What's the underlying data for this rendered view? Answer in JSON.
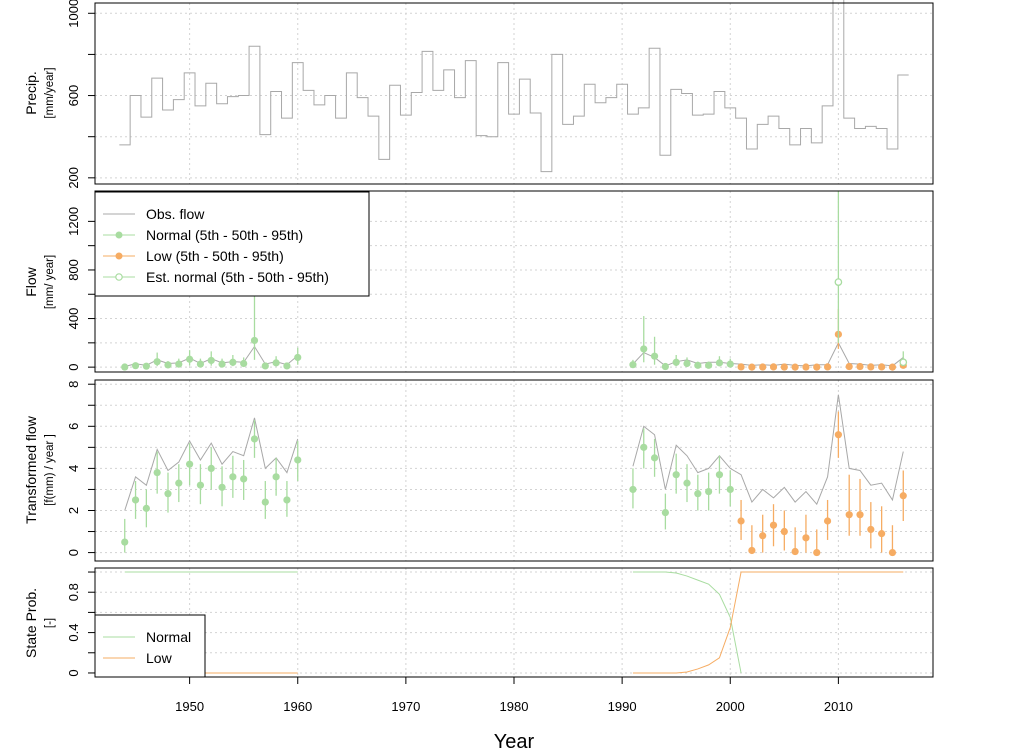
{
  "chart_data": {
    "type": "line",
    "xlabel": "Year",
    "xticks": [
      1950,
      1960,
      1970,
      1980,
      1990,
      2000,
      2010
    ],
    "colors": {
      "obs": "#a8a8a8",
      "normal": "#a8dca0",
      "low": "#f6ac63",
      "grid": "#d3d3d3"
    },
    "panels": [
      {
        "id": "precip",
        "ylabel": "Precip.",
        "yunit": "[mm/year]",
        "ylim": [
          170,
          1050
        ],
        "yticks": [
          200,
          600,
          1000
        ],
        "minor_ticks": [
          400,
          800
        ],
        "series": [
          {
            "name": "precip",
            "x": [
              1944,
              1945,
              1946,
              1947,
              1948,
              1949,
              1950,
              1951,
              1952,
              1953,
              1954,
              1955,
              1956,
              1957,
              1958,
              1959,
              1960,
              1961,
              1962,
              1963,
              1964,
              1965,
              1966,
              1967,
              1968,
              1969,
              1970,
              1971,
              1972,
              1973,
              1974,
              1975,
              1976,
              1977,
              1978,
              1979,
              1980,
              1981,
              1982,
              1983,
              1984,
              1985,
              1986,
              1987,
              1988,
              1989,
              1990,
              1991,
              1992,
              1993,
              1994,
              1995,
              1996,
              1997,
              1998,
              1999,
              2000,
              2001,
              2002,
              2003,
              2004,
              2005,
              2006,
              2007,
              2008,
              2009,
              2010,
              2011,
              2012,
              2013,
              2014,
              2015,
              2016
            ],
            "values": [
              360,
              600,
              495,
              685,
              530,
              580,
              710,
              550,
              660,
              560,
              595,
              600,
              840,
              410,
              620,
              490,
              760,
              625,
              555,
              600,
              490,
              710,
              590,
              500,
              290,
              650,
              505,
              615,
              815,
              625,
              725,
              590,
              770,
              405,
              400,
              760,
              510,
              680,
              515,
              230,
              800,
              460,
              500,
              655,
              565,
              590,
              655,
              510,
              540,
              830,
              310,
              630,
              610,
              505,
              510,
              620,
              540,
              490,
              340,
              460,
              500,
              440,
              360,
              440,
              370,
              550,
              1080,
              490,
              440,
              450,
              440,
              340,
              700
            ]
          }
        ]
      },
      {
        "id": "flow",
        "ylabel": "Flow",
        "yunit": "[mm/ year]",
        "ylim": [
          -40,
          1450
        ],
        "yticks": [
          0,
          400,
          800,
          1200
        ],
        "minor_ticks": [
          200,
          600,
          1000
        ],
        "series": [
          {
            "name": "Obs. flow",
            "x": [
              1944,
              1945,
              1946,
              1947,
              1948,
              1949,
              1950,
              1951,
              1952,
              1953,
              1954,
              1955,
              1956,
              1957,
              1958,
              1959,
              1960
            ],
            "values": [
              5,
              28,
              15,
              60,
              30,
              35,
              75,
              30,
              70,
              35,
              45,
              40,
              170,
              25,
              45,
              20,
              95
            ]
          },
          {
            "name": "Obs. flow",
            "x": [
              1991,
              1992,
              1993,
              1994,
              1995,
              1996,
              1997,
              1998,
              1999,
              2000,
              2001,
              2002,
              2003,
              2004,
              2005,
              2006,
              2007,
              2008,
              2009,
              2010,
              2011,
              2012,
              2013,
              2014,
              2015,
              2016
            ],
            "values": [
              25,
              120,
              80,
              10,
              45,
              60,
              30,
              40,
              40,
              30,
              25,
              15,
              20,
              15,
              25,
              15,
              10,
              20,
              20,
              200,
              30,
              25,
              15,
              20,
              10,
              80
            ]
          },
          {
            "name": "Normal (5th - 50th - 95th)",
            "x": [
              1944,
              1945,
              1946,
              1947,
              1948,
              1949,
              1950,
              1951,
              1952,
              1953,
              1954,
              1955,
              1956,
              1957,
              1958,
              1959,
              1960,
              1991,
              1992,
              1993,
              1994,
              1995,
              1996,
              1997,
              1998,
              1999,
              2000
            ],
            "median": [
              1,
              12,
              8,
              45,
              18,
              25,
              65,
              25,
              55,
              25,
              40,
              30,
              220,
              10,
              35,
              10,
              80,
              20,
              150,
              90,
              5,
              40,
              30,
              15,
              15,
              35,
              25
            ],
            "lo": [
              0,
              2,
              1,
              8,
              3,
              5,
              12,
              5,
              12,
              6,
              8,
              6,
              60,
              2,
              8,
              2,
              20,
              4,
              40,
              20,
              1,
              8,
              6,
              3,
              3,
              8,
              5
            ],
            "hi": [
              8,
              35,
              25,
              120,
              50,
              70,
              140,
              70,
              130,
              70,
              100,
              80,
              650,
              30,
              90,
              30,
              160,
              60,
              420,
              250,
              15,
              100,
              80,
              45,
              45,
              90,
              70
            ]
          },
          {
            "name": "Low (5th - 50th - 95th)",
            "x": [
              2001,
              2002,
              2003,
              2004,
              2005,
              2006,
              2007,
              2008,
              2009,
              2010,
              2011,
              2012,
              2013,
              2014,
              2015,
              2016
            ],
            "median": [
              2,
              0,
              1,
              2,
              1,
              0,
              1,
              0,
              2,
              270,
              5,
              5,
              2,
              2,
              0,
              15
            ],
            "lo": [
              0,
              0,
              0,
              0,
              0,
              0,
              0,
              0,
              0,
              150,
              0,
              0,
              0,
              0,
              0,
              0
            ],
            "hi": [
              8,
              4,
              5,
              6,
              5,
              3,
              4,
              3,
              8,
              480,
              15,
              15,
              8,
              8,
              3,
              50
            ]
          },
          {
            "name": "Est. normal (5th - 50th - 95th)",
            "x": [
              2010,
              2016
            ],
            "median": [
              700,
              40
            ],
            "lo": [
              200,
              10
            ],
            "hi": [
              1450,
              130
            ]
          }
        ],
        "legend": {
          "position": "top-left",
          "entries": [
            "Obs. flow",
            "Normal (5th - 50th - 95th)",
            "Low (5th - 50th - 95th)",
            "Est. normal (5th - 50th - 95th)"
          ]
        }
      },
      {
        "id": "transformed",
        "ylabel": "Transformed flow",
        "yunit": "[f(mm) / year ]",
        "ylim": [
          -0.4,
          8.2
        ],
        "yticks": [
          0,
          2,
          4,
          6,
          8
        ],
        "minor_ticks": [
          1,
          3,
          5,
          7
        ],
        "series": [
          {
            "name": "Obs. flow",
            "x": [
              1944,
              1945,
              1946,
              1947,
              1948,
              1949,
              1950,
              1951,
              1952,
              1953,
              1954,
              1955,
              1956,
              1957,
              1958,
              1959,
              1960
            ],
            "values": [
              2.0,
              3.6,
              3.2,
              4.9,
              3.9,
              4.3,
              5.3,
              4.4,
              5.2,
              4.2,
              4.8,
              4.6,
              6.4,
              4.0,
              4.5,
              3.8,
              5.4
            ]
          },
          {
            "name": "Obs. flow",
            "x": [
              1991,
              1992,
              1993,
              1994,
              1995,
              1996,
              1997,
              1998,
              1999,
              2000,
              2001,
              2002,
              2003,
              2004,
              2005,
              2006,
              2007,
              2008,
              2009,
              2010,
              2011,
              2012,
              2013,
              2014,
              2015,
              2016
            ],
            "values": [
              4.1,
              6.0,
              5.6,
              3.0,
              5.1,
              4.6,
              3.8,
              4.0,
              4.6,
              4.0,
              3.7,
              2.4,
              3.0,
              2.6,
              3.1,
              2.4,
              2.9,
              2.3,
              3.6,
              7.5,
              4.0,
              3.9,
              3.2,
              3.3,
              2.5,
              4.8
            ]
          },
          {
            "name": "Normal (5th - 50th - 95th)",
            "x": [
              1944,
              1945,
              1946,
              1947,
              1948,
              1949,
              1950,
              1951,
              1952,
              1953,
              1954,
              1955,
              1956,
              1957,
              1958,
              1959,
              1960,
              1991,
              1992,
              1993,
              1994,
              1995,
              1996,
              1997,
              1998,
              1999,
              2000
            ],
            "median": [
              0.5,
              2.5,
              2.1,
              3.8,
              2.8,
              3.3,
              4.2,
              3.2,
              4.0,
              3.1,
              3.6,
              3.5,
              5.4,
              2.4,
              3.6,
              2.5,
              4.4,
              3.0,
              5.0,
              4.5,
              1.9,
              3.7,
              3.3,
              2.8,
              2.9,
              3.7,
              3.0
            ],
            "lo": [
              0.0,
              1.6,
              1.2,
              2.8,
              1.9,
              2.4,
              3.2,
              2.3,
              3.0,
              2.2,
              2.6,
              2.5,
              4.5,
              1.6,
              2.7,
              1.7,
              3.4,
              2.1,
              4.0,
              3.6,
              1.1,
              2.8,
              2.4,
              2.0,
              2.0,
              2.8,
              2.2
            ],
            "hi": [
              1.6,
              3.4,
              3.0,
              4.8,
              3.8,
              4.2,
              5.2,
              4.2,
              5.0,
              4.1,
              4.6,
              4.4,
              6.3,
              3.4,
              4.5,
              3.4,
              5.3,
              4.0,
              5.9,
              5.4,
              2.8,
              4.7,
              4.2,
              3.7,
              3.8,
              4.6,
              3.9
            ]
          },
          {
            "name": "Low (5th - 50th - 95th)",
            "x": [
              2001,
              2002,
              2003,
              2004,
              2005,
              2006,
              2007,
              2008,
              2009,
              2010,
              2011,
              2012,
              2013,
              2014,
              2015,
              2016
            ],
            "median": [
              1.5,
              0.1,
              0.8,
              1.3,
              1.0,
              0.05,
              0.7,
              0.0,
              1.5,
              5.6,
              1.8,
              1.8,
              1.1,
              0.9,
              0.0,
              2.7
            ],
            "lo": [
              0.6,
              0.0,
              0.0,
              0.3,
              0.1,
              0.0,
              0.0,
              0.0,
              0.6,
              4.5,
              0.8,
              0.8,
              0.2,
              0.0,
              0.0,
              1.5
            ],
            "hi": [
              2.5,
              1.3,
              1.8,
              2.3,
              2.0,
              1.2,
              1.8,
              1.1,
              2.5,
              6.7,
              3.7,
              3.5,
              2.4,
              2.2,
              1.3,
              3.9
            ]
          }
        ]
      },
      {
        "id": "state",
        "ylabel": "State Prob.",
        "yunit": "[-]",
        "ylim": [
          -0.04,
          1.04
        ],
        "yticks": [
          0.0,
          0.4,
          0.8
        ],
        "minor_ticks": [
          0.2,
          0.6,
          1.0
        ],
        "series": [
          {
            "name": "Normal",
            "x": [
              1944,
              1960
            ],
            "values": [
              1,
              1
            ]
          },
          {
            "name": "Normal",
            "x": [
              1991,
              1994,
              1995,
              1996,
              1997,
              1998,
              1999,
              2000,
              2001
            ],
            "values": [
              1,
              1,
              0.99,
              0.96,
              0.92,
              0.88,
              0.78,
              0.55,
              0.0
            ]
          },
          {
            "name": "Low",
            "x": [
              1944,
              1960
            ],
            "values": [
              0,
              0
            ]
          },
          {
            "name": "Low",
            "x": [
              1991,
              1995,
              1996,
              1997,
              1998,
              1999,
              2000,
              2001,
              2016
            ],
            "values": [
              0,
              0,
              0.01,
              0.04,
              0.08,
              0.15,
              0.45,
              1.0,
              1.0
            ]
          }
        ],
        "legend": {
          "position": "bottom-left",
          "entries": [
            "Normal",
            "Low"
          ]
        }
      }
    ]
  }
}
